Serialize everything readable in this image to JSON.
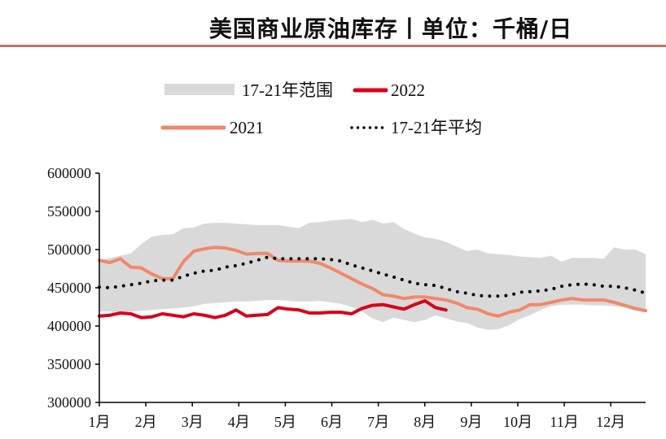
{
  "chart_data": {
    "type": "line",
    "title": "美国商业原油库存丨单位：千桶/日",
    "x_tick_labels": [
      "1月",
      "2月",
      "3月",
      "4月",
      "5月",
      "6月",
      "7月",
      "8月",
      "9月",
      "10月",
      "11月",
      "12月"
    ],
    "x": "week 1-53",
    "ylim": [
      300000,
      600000
    ],
    "y_ticks": [
      300000,
      350000,
      400000,
      450000,
      500000,
      550000,
      600000
    ],
    "y_tick_labels": [
      "300000",
      "350000",
      "400000",
      "450000",
      "500000",
      "550000",
      "600000"
    ],
    "grid": false,
    "legend_placement": "top",
    "range": {
      "name": "17-21年范围",
      "color": "#d9d9d9",
      "upper": [
        486000,
        489000,
        492000,
        495000,
        507000,
        517000,
        519000,
        520000,
        528000,
        529000,
        534000,
        535000,
        535000,
        534000,
        533000,
        532000,
        532000,
        532000,
        530000,
        528000,
        535000,
        536000,
        538000,
        539000,
        540000,
        536000,
        539000,
        534000,
        536000,
        527000,
        521000,
        516000,
        514000,
        510000,
        504000,
        498000,
        500000,
        495000,
        494000,
        493000,
        491000,
        490000,
        489000,
        492000,
        484000,
        489000,
        489000,
        489000,
        488000,
        503000,
        500000,
        500000,
        494000
      ],
      "lower": [
        419000,
        419000,
        419000,
        419000,
        420000,
        421000,
        422000,
        423000,
        424000,
        426000,
        429000,
        430000,
        431000,
        432000,
        432000,
        433000,
        434000,
        434000,
        433000,
        432000,
        432000,
        433000,
        431000,
        429000,
        425000,
        419000,
        410000,
        405000,
        411000,
        408000,
        405000,
        408000,
        414000,
        410000,
        406000,
        404000,
        398000,
        395000,
        396000,
        401000,
        409000,
        414000,
        421000,
        426000,
        428000,
        428000,
        428000,
        427000,
        427000,
        426000,
        424000,
        420000,
        418000
      ]
    },
    "series": [
      {
        "name": "2022",
        "color": "#d7001a",
        "values": [
          413000,
          414000,
          417000,
          416000,
          411000,
          412000,
          416000,
          414000,
          412000,
          416000,
          414000,
          411000,
          414000,
          421000,
          413000,
          414000,
          415000,
          424000,
          422000,
          421000,
          417000,
          417000,
          418000,
          418000,
          416000,
          423000,
          427000,
          428000,
          425000,
          422000,
          428000,
          433000,
          424000,
          421000
        ]
      },
      {
        "name": "2021",
        "color": "#f0896a",
        "values": [
          486000,
          483000,
          488000,
          477000,
          476000,
          468000,
          462000,
          462000,
          484000,
          498000,
          501000,
          503000,
          502000,
          499000,
          494000,
          495000,
          495000,
          486000,
          485000,
          485000,
          485000,
          482000,
          476000,
          469000,
          462000,
          455000,
          449000,
          441000,
          439000,
          436000,
          438000,
          438000,
          436000,
          434000,
          430000,
          424000,
          422000,
          416000,
          413000,
          418000,
          421000,
          428000,
          428000,
          431000,
          434000,
          436000,
          434000,
          434000,
          434000,
          431000,
          427000,
          423000,
          420000
        ]
      },
      {
        "name": "17-21年平均",
        "color": "#000000",
        "style": "dotted",
        "values": [
          451000,
          450000,
          452000,
          454000,
          456000,
          459000,
          460000,
          460000,
          465000,
          469000,
          472000,
          473000,
          477000,
          479000,
          482000,
          486000,
          490000,
          488000,
          488000,
          488000,
          488000,
          488000,
          487000,
          485000,
          480000,
          476000,
          472000,
          468000,
          464000,
          460000,
          456000,
          454000,
          453000,
          449000,
          445000,
          443000,
          440000,
          439000,
          439000,
          440000,
          444000,
          445000,
          446000,
          448000,
          452000,
          454000,
          455000,
          454000,
          452000,
          452000,
          450000,
          447000,
          443000
        ]
      }
    ]
  }
}
